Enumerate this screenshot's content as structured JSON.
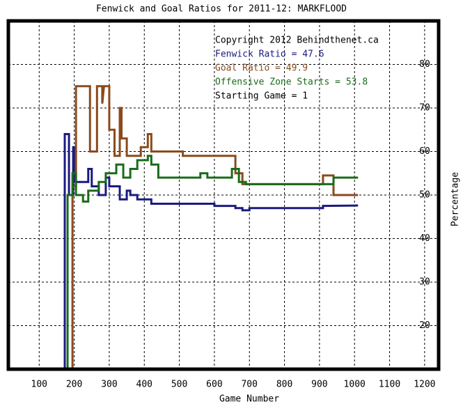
{
  "chart_data": {
    "type": "line",
    "title": "Fenwick and Goal Ratios for 2011-12: MARKFLOOD",
    "x_label": "Game Number",
    "y_label": "Percentage",
    "xlim": [
      12,
      1240
    ],
    "ylim": [
      10,
      90
    ],
    "xticks": [
      100,
      200,
      300,
      400,
      500,
      600,
      700,
      800,
      900,
      1000,
      1100,
      1200
    ],
    "yticks": [
      20,
      30,
      40,
      50,
      60,
      70,
      80
    ],
    "grid": true,
    "legend": [
      {
        "text": "Copyright 2012 Behindthenet.ca",
        "color": "#000000"
      },
      {
        "text": "Fenwick Ratio = 47.6",
        "color": "#1a1a80"
      },
      {
        "text": "Goal Ratio = 49.9",
        "color": "#8b4a1c"
      },
      {
        "text": "Offensive Zone Starts = 53.8",
        "color": "#1a6b1a"
      },
      {
        "text": "Starting Game = 1",
        "color": "#000000"
      }
    ],
    "series": [
      {
        "color": "#1a1a80",
        "x": [
          173,
          173,
          185,
          185,
          197,
          197,
          203,
          203,
          240,
          240,
          250,
          250,
          270,
          270,
          290,
          290,
          300,
          300,
          330,
          330,
          350,
          350,
          360,
          360,
          380,
          380,
          420,
          420,
          600,
          600,
          660,
          660,
          680,
          680,
          700,
          700,
          910,
          910,
          1010
        ],
        "values": [
          0,
          64,
          64,
          50,
          50,
          61,
          61,
          53,
          53,
          56,
          56,
          52,
          52,
          50,
          50,
          54,
          54,
          52,
          52,
          49,
          49,
          51,
          51,
          50,
          50,
          49,
          49,
          48,
          48,
          47.5,
          47.5,
          47,
          47,
          46.5,
          46.5,
          47,
          47,
          47.5,
          47.6
        ]
      },
      {
        "color": "#8b4a1c",
        "x": [
          195,
          195,
          205,
          205,
          245,
          245,
          265,
          265,
          280,
          280,
          285,
          300,
          300,
          315,
          315,
          330,
          330,
          335,
          335,
          350,
          350,
          390,
          390,
          410,
          410,
          420,
          420,
          510,
          510,
          660,
          660,
          680,
          680,
          910,
          910,
          940,
          940,
          1010
        ],
        "values": [
          0,
          52,
          52,
          75,
          75,
          60,
          60,
          75,
          75,
          71,
          75,
          75,
          65,
          65,
          59,
          59,
          70,
          70,
          63,
          63,
          59,
          59,
          61,
          61,
          64,
          64,
          60,
          60,
          59,
          59,
          55,
          55,
          52.5,
          52.5,
          54.5,
          54.5,
          50,
          50
        ]
      },
      {
        "color": "#1a6b1a",
        "x": [
          181,
          181,
          195,
          195,
          205,
          205,
          225,
          225,
          240,
          240,
          270,
          270,
          290,
          290,
          320,
          320,
          340,
          340,
          360,
          360,
          380,
          380,
          410,
          410,
          420,
          420,
          440,
          440,
          560,
          560,
          580,
          580,
          650,
          650,
          670,
          670,
          690,
          690,
          940,
          940,
          1010
        ],
        "values": [
          0,
          50,
          50,
          55,
          55,
          50,
          50,
          48.5,
          48.5,
          51,
          51,
          53,
          53,
          55,
          55,
          57,
          57,
          54,
          54,
          56,
          56,
          58,
          58,
          59,
          59,
          57,
          57,
          54,
          54,
          55,
          55,
          54,
          54,
          56,
          56,
          53,
          53,
          52.5,
          52.5,
          54,
          54
        ]
      }
    ]
  }
}
